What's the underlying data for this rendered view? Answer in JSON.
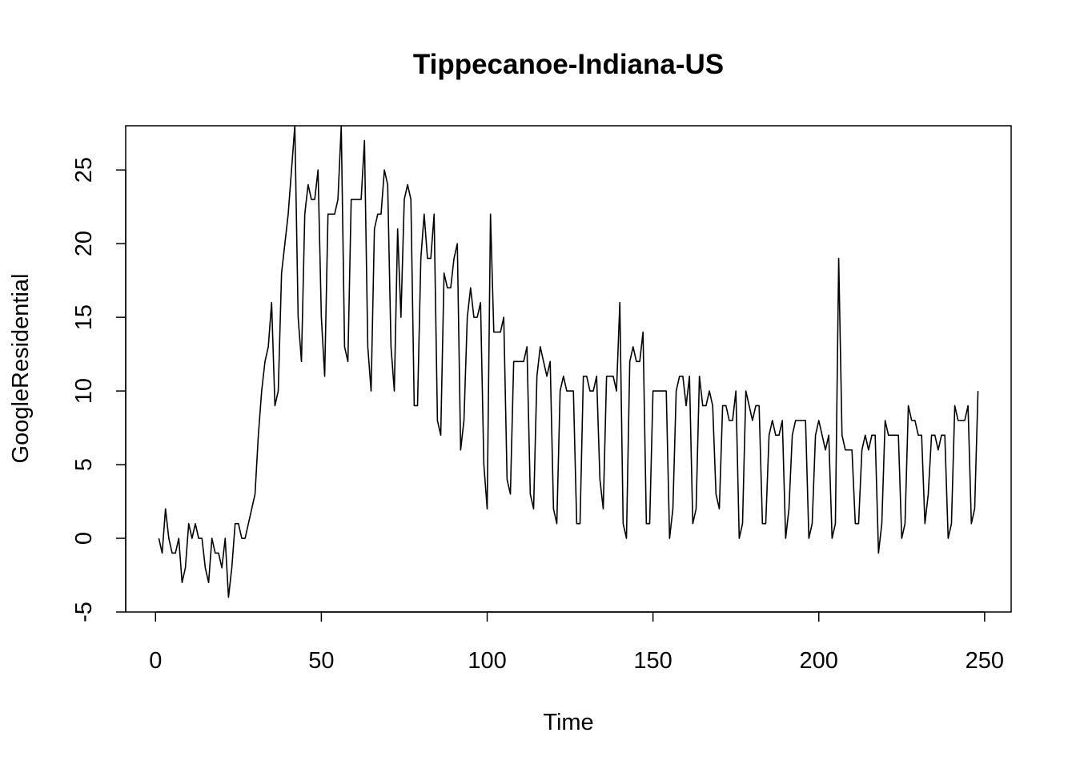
{
  "chart_data": {
    "type": "line",
    "title": "Tippecanoe-Indiana-US",
    "xlabel": "Time",
    "ylabel": "GoogleResidential",
    "xlim": [
      -9,
      258
    ],
    "ylim": [
      -5,
      28
    ],
    "xticks": [
      0,
      50,
      100,
      150,
      200,
      250
    ],
    "yticks": [
      -5,
      0,
      5,
      10,
      15,
      20,
      25
    ],
    "xtick_labels": [
      "0",
      "50",
      "100",
      "150",
      "200",
      "250"
    ],
    "ytick_labels": [
      "-5",
      "0",
      "5",
      "10",
      "15",
      "20",
      "25"
    ],
    "grid": false,
    "legend": "none",
    "line_color": "#000000",
    "series": [
      {
        "x_start": 1,
        "values": [
          0,
          -1,
          2,
          0,
          -1,
          -1,
          0,
          -3,
          -2,
          1,
          0,
          1,
          0,
          0,
          -2,
          -3,
          0,
          -1,
          -1,
          -2,
          0,
          -4,
          -2,
          1,
          1,
          0,
          0,
          1,
          2,
          3,
          7,
          10,
          12,
          13,
          16,
          9,
          10,
          18,
          20,
          22,
          25,
          28,
          15,
          12,
          22,
          24,
          23,
          23,
          25,
          15,
          11,
          22,
          22,
          22,
          23,
          28,
          13,
          12,
          23,
          23,
          23,
          23,
          27,
          13,
          10,
          21,
          22,
          22,
          25,
          24,
          13,
          10,
          21,
          15,
          23,
          24,
          23,
          9,
          9,
          19,
          22,
          19,
          19,
          22,
          8,
          7,
          18,
          17,
          17,
          19,
          20,
          6,
          8,
          15,
          17,
          15,
          15,
          16,
          5,
          2,
          22,
          14,
          14,
          14,
          15,
          4,
          3,
          12,
          12,
          12,
          12,
          13,
          3,
          2,
          11,
          13,
          12,
          11,
          12,
          2,
          1,
          10,
          11,
          10,
          10,
          10,
          1,
          1,
          11,
          11,
          10,
          10,
          11,
          4,
          2,
          11,
          11,
          11,
          10,
          16,
          1,
          0,
          12,
          13,
          12,
          12,
          14,
          1,
          1,
          10,
          10,
          10,
          10,
          10,
          0,
          2,
          10,
          11,
          11,
          9,
          11,
          1,
          2,
          11,
          9,
          9,
          10,
          9,
          3,
          2,
          9,
          9,
          8,
          8,
          10,
          0,
          1,
          10,
          9,
          8,
          9,
          9,
          1,
          1,
          7,
          8,
          7,
          7,
          8,
          0,
          2,
          7,
          8,
          8,
          8,
          8,
          0,
          1,
          7,
          8,
          7,
          6,
          7,
          0,
          1,
          19,
          7,
          6,
          6,
          6,
          1,
          1,
          6,
          7,
          6,
          7,
          7,
          -1,
          1,
          8,
          7,
          7,
          7,
          7,
          0,
          1,
          9,
          8,
          8,
          7,
          7,
          1,
          3,
          7,
          7,
          6,
          7,
          7,
          0,
          1,
          9,
          8,
          8,
          8,
          9,
          1,
          2,
          10
        ]
      }
    ]
  }
}
